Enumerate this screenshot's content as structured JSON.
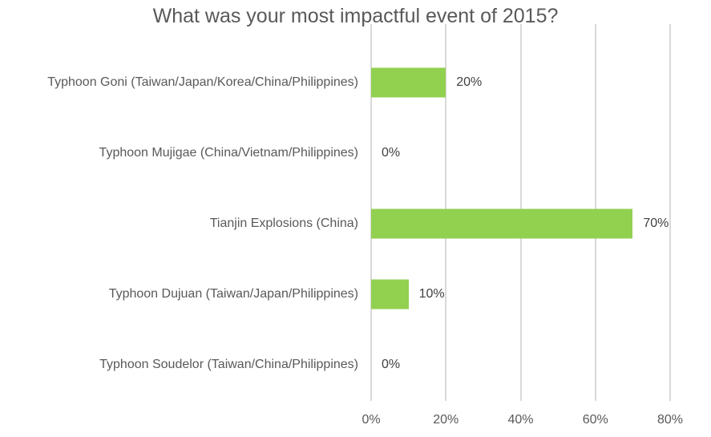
{
  "chart_data": {
    "type": "bar",
    "orientation": "horizontal",
    "title": "What was your most impactful event of 2015?",
    "categories": [
      "Typhoon Goni (Taiwan/Japan/Korea/China/Philippines)",
      "Typhoon Mujigae (China/Vietnam/Philippines)",
      "Tianjin Explosions (China)",
      "Typhoon Dujuan (Taiwan/Japan/Philippines)",
      "Typhoon Soudelor (Taiwan/China/Philippines)"
    ],
    "values": [
      20,
      0,
      70,
      10,
      0
    ],
    "value_labels": [
      "20%",
      "0%",
      "70%",
      "10%",
      "0%"
    ],
    "xlabel": "",
    "ylabel": "",
    "xlim": [
      0,
      80
    ],
    "x_ticks": [
      "0%",
      "20%",
      "40%",
      "60%",
      "80%"
    ],
    "grid": "vertical",
    "bar_color": "#92d050",
    "legend": null
  }
}
